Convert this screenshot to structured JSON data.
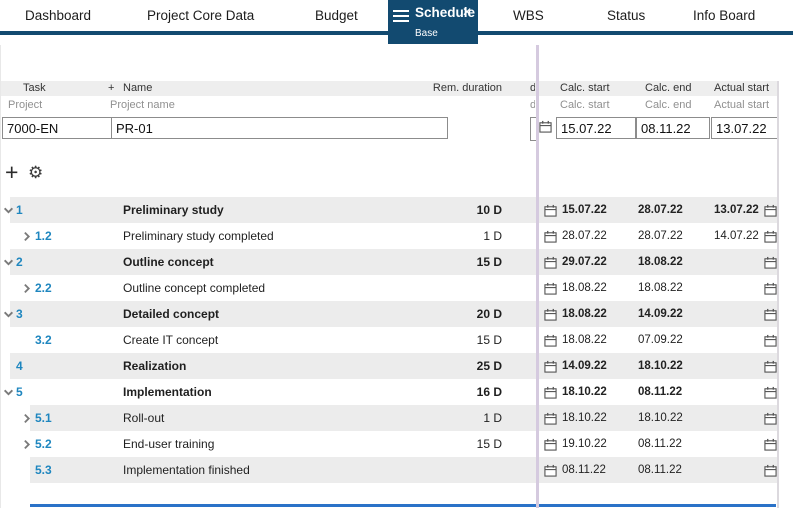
{
  "tabs": [
    {
      "label": "Dashboard"
    },
    {
      "label": "Project Core Data"
    },
    {
      "label": "Budget"
    },
    {
      "label": "Schedule",
      "sublabel": "Base",
      "active": true,
      "close_icon": "✕"
    },
    {
      "label": "WBS"
    },
    {
      "label": "Status"
    },
    {
      "label": "Info Board"
    }
  ],
  "header": {
    "col_task": "Task",
    "col_plus": "+",
    "col_name": "Name",
    "col_rem_duration": "Rem. duration",
    "col_clipped_fragment": "d",
    "col_calc_start": "Calc. start",
    "col_calc_end": "Calc. end",
    "col_actual_start": "Actual start",
    "sub_task": "Project",
    "sub_name": "Project name",
    "sub_calc_start": "Calc. start",
    "sub_calc_end": "Calc. end",
    "sub_actual_start": "Actual start"
  },
  "project_row": {
    "task": "7000-EN",
    "name": "PR-01",
    "calc_start": "15.07.22",
    "calc_end": "08.11.22",
    "actual_start": "13.07.22"
  },
  "toolbar": {
    "add_icon": "+",
    "settings_icon": "⚙"
  },
  "rows": [
    {
      "num": "1",
      "name": "Preliminary study",
      "dur": "10 D",
      "cs": "15.07.22",
      "ce": "28.07.22",
      "as": "13.07.22",
      "bold": true,
      "chevron": "down",
      "level": 1,
      "shade": true
    },
    {
      "num": "1.2",
      "name": "Preliminary study completed",
      "dur": "1 D",
      "cs": "28.07.22",
      "ce": "28.07.22",
      "as": "14.07.22",
      "bold": false,
      "chevron": "right",
      "level": 2,
      "shade": false
    },
    {
      "num": "2",
      "name": "Outline concept",
      "dur": "15 D",
      "cs": "29.07.22",
      "ce": "18.08.22",
      "as": "",
      "bold": true,
      "chevron": "down",
      "level": 1,
      "shade": true
    },
    {
      "num": "2.2",
      "name": "Outline concept completed",
      "dur": "",
      "cs": "18.08.22",
      "ce": "18.08.22",
      "as": "",
      "bold": false,
      "chevron": "right",
      "level": 2,
      "shade": false
    },
    {
      "num": "3",
      "name": "Detailed concept",
      "dur": "20 D",
      "cs": "18.08.22",
      "ce": "14.09.22",
      "as": "",
      "bold": true,
      "chevron": "down",
      "level": 1,
      "shade": true
    },
    {
      "num": "3.2",
      "name": "Create IT concept",
      "dur": "15 D",
      "cs": "18.08.22",
      "ce": "07.09.22",
      "as": "",
      "bold": false,
      "chevron": "none",
      "level": 2,
      "shade": false
    },
    {
      "num": "4",
      "name": "Realization",
      "dur": "25 D",
      "cs": "14.09.22",
      "ce": "18.10.22",
      "as": "",
      "bold": true,
      "chevron": "none",
      "level": 1,
      "shade": true
    },
    {
      "num": "5",
      "name": "Implementation",
      "dur": "16 D",
      "cs": "18.10.22",
      "ce": "08.11.22",
      "as": "",
      "bold": true,
      "chevron": "down",
      "level": 1,
      "shade": false
    },
    {
      "num": "5.1",
      "name": "Roll-out",
      "dur": "1 D",
      "cs": "18.10.22",
      "ce": "18.10.22",
      "as": "",
      "bold": false,
      "chevron": "right",
      "level": 2,
      "shade": true
    },
    {
      "num": "5.2",
      "name": "End-user training",
      "dur": "15 D",
      "cs": "19.10.22",
      "ce": "08.11.22",
      "as": "",
      "bold": false,
      "chevron": "right",
      "level": 2,
      "shade": false
    },
    {
      "num": "5.3",
      "name": "Implementation finished",
      "dur": "",
      "cs": "08.11.22",
      "ce": "08.11.22",
      "as": "",
      "bold": false,
      "chevron": "none",
      "level": 2,
      "shade": true
    }
  ],
  "colors": {
    "navy": "#124a70",
    "accent_blue": "#1e86bf",
    "row_shade": "#ececec",
    "divider_purple": "#d5cadf",
    "bottom_line": "#2a72c8"
  }
}
